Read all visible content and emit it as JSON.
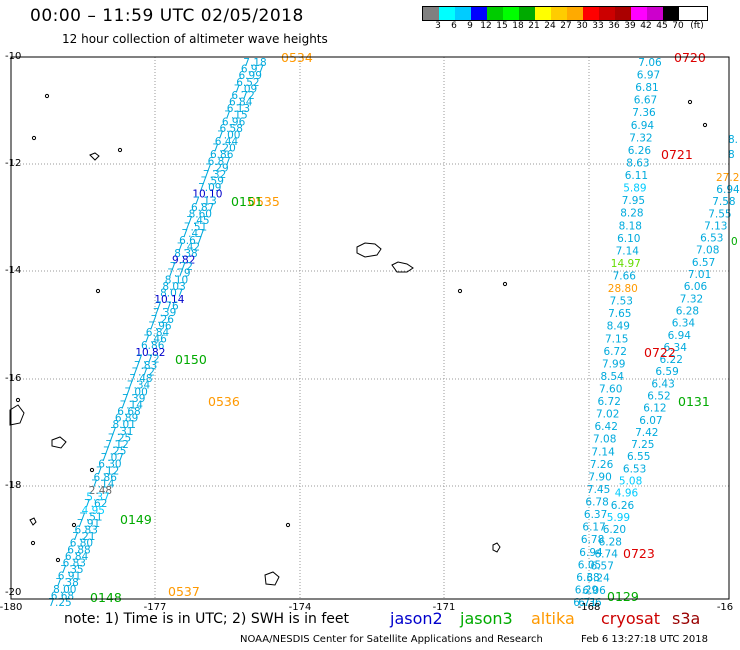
{
  "header": {
    "title": "00:00 – 11:59 UTC 02/05/2018",
    "subtitle": "12 hour collection of altimeter wave heights"
  },
  "legend": {
    "colors": [
      "#808080",
      "#00ffff",
      "#00ccff",
      "#0000ff",
      "#00cc00",
      "#00ff00",
      "#00aa00",
      "#ffff00",
      "#ffcc00",
      "#ffaa00",
      "#ff0000",
      "#cc0000",
      "#aa0000",
      "#ff00ff",
      "#cc00cc",
      "#000000"
    ],
    "values": [
      "3",
      "6",
      "9",
      "12",
      "15",
      "18",
      "21",
      "24",
      "27",
      "30",
      "33",
      "36",
      "39",
      "42",
      "45",
      "70"
    ],
    "unit": "(ft)"
  },
  "axes": {
    "y_labels": [
      "-10",
      "-12",
      "-14",
      "-16",
      "-18",
      "-20"
    ],
    "x_labels": [
      "-180",
      "-177",
      "-174",
      "-171",
      "-168",
      "-16"
    ]
  },
  "footer": {
    "note": "note: 1) Time is in UTC; 2) SWH is in feet",
    "satellites": [
      {
        "name": "jason2",
        "color": "#0000cc"
      },
      {
        "name": "jason3",
        "color": "#00aa00"
      },
      {
        "name": "altika",
        "color": "#ff9900"
      },
      {
        "name": "cryosat",
        "color": "#cc0000"
      },
      {
        "name": "s3a",
        "color": "#990000"
      }
    ],
    "credit": "NOAA/NESDIS Center for Satellite Applications and Research",
    "timestamp": "Feb  6 13:27:18 UTC 2018"
  },
  "tracks": [
    {
      "points": [
        {
          "v": "7.18",
          "c": "#00aadd"
        },
        {
          "v": "6.97",
          "c": "#00aadd"
        },
        {
          "v": "6.99",
          "c": "#00aadd"
        },
        {
          "v": "6.52",
          "c": "#00aadd"
        },
        {
          "v": "7.09",
          "c": "#00aadd"
        },
        {
          "v": "6.72",
          "c": "#00aadd"
        },
        {
          "v": "6.84",
          "c": "#00aadd"
        },
        {
          "v": "6.13",
          "c": "#00aadd"
        },
        {
          "v": "7.15",
          "c": "#00aadd"
        },
        {
          "v": "6.96",
          "c": "#00aadd"
        },
        {
          "v": "6.58",
          "c": "#00aadd"
        },
        {
          "v": "7.00",
          "c": "#00aadd"
        },
        {
          "v": "6.44",
          "c": "#00aadd"
        },
        {
          "v": "7.20",
          "c": "#00aadd"
        },
        {
          "v": "6.86",
          "c": "#00aadd"
        },
        {
          "v": "6.87",
          "c": "#00aadd"
        },
        {
          "v": "7.29",
          "c": "#00aadd"
        },
        {
          "v": "7.32",
          "c": "#00aadd"
        },
        {
          "v": "7.59",
          "c": "#00aadd"
        },
        {
          "v": "7.09",
          "c": "#00aadd"
        },
        {
          "v": "10.10",
          "c": "#0000cc"
        },
        {
          "v": "7.13",
          "c": "#00aadd"
        },
        {
          "v": "6.87",
          "c": "#00aadd"
        },
        {
          "v": "8.60",
          "c": "#00aadd"
        },
        {
          "v": "7.45",
          "c": "#00aadd"
        },
        {
          "v": "7.51",
          "c": "#00aadd"
        },
        {
          "v": "7.47",
          "c": "#00aadd"
        },
        {
          "v": "6.67",
          "c": "#00aadd"
        },
        {
          "v": "7.42",
          "c": "#00aadd"
        },
        {
          "v": "8.38",
          "c": "#00aadd"
        },
        {
          "v": "9.82",
          "c": "#0000cc"
        },
        {
          "v": "7.72",
          "c": "#00aadd"
        },
        {
          "v": "7.79",
          "c": "#00aadd"
        },
        {
          "v": "8.10",
          "c": "#00aadd"
        },
        {
          "v": "8.03",
          "c": "#00aadd"
        },
        {
          "v": "8.07",
          "c": "#00aadd"
        },
        {
          "v": "10.14",
          "c": "#0000cc"
        },
        {
          "v": "7.76",
          "c": "#00aadd"
        },
        {
          "v": "7.39",
          "c": "#00aadd"
        },
        {
          "v": "7.26",
          "c": "#00aadd"
        },
        {
          "v": "7.96",
          "c": "#00aadd"
        },
        {
          "v": "6.84",
          "c": "#00aadd"
        },
        {
          "v": "7.46",
          "c": "#00aadd"
        },
        {
          "v": "6.86",
          "c": "#00aadd"
        },
        {
          "v": "10.82",
          "c": "#0000cc"
        },
        {
          "v": "7.72",
          "c": "#00aadd"
        },
        {
          "v": "7.83",
          "c": "#00aadd"
        },
        {
          "v": "7.72",
          "c": "#00aadd"
        },
        {
          "v": "7.48",
          "c": "#00aadd"
        },
        {
          "v": "7.34",
          "c": "#00aadd"
        },
        {
          "v": "7.00",
          "c": "#00aadd"
        },
        {
          "v": "7.39",
          "c": "#00aadd"
        },
        {
          "v": "7.14",
          "c": "#00aadd"
        },
        {
          "v": "6.68",
          "c": "#00aadd"
        },
        {
          "v": "6.89",
          "c": "#00aadd"
        },
        {
          "v": "8.01",
          "c": "#00aadd"
        },
        {
          "v": "7.31",
          "c": "#00aadd"
        },
        {
          "v": "7.25",
          "c": "#00aadd"
        },
        {
          "v": "7.12",
          "c": "#00aadd"
        },
        {
          "v": "7.25",
          "c": "#00aadd"
        },
        {
          "v": "7.07",
          "c": "#00aadd"
        },
        {
          "v": "6.30",
          "c": "#00aadd"
        },
        {
          "v": "7.12",
          "c": "#00aadd"
        },
        {
          "v": "6.86",
          "c": "#00aadd"
        },
        {
          "v": "7.14",
          "c": "#00aadd"
        },
        {
          "v": "2.48",
          "c": "#666666"
        },
        {
          "v": "5.37",
          "c": "#00ccff"
        },
        {
          "v": "7.62",
          "c": "#00aadd"
        },
        {
          "v": "4.95",
          "c": "#00ccff"
        },
        {
          "v": "7.51",
          "c": "#00aadd"
        },
        {
          "v": "7.91",
          "c": "#00aadd"
        },
        {
          "v": "6.83",
          "c": "#00aadd"
        },
        {
          "v": "7.21",
          "c": "#00aadd"
        },
        {
          "v": "6.80",
          "c": "#00aadd"
        },
        {
          "v": "6.88",
          "c": "#00aadd"
        },
        {
          "v": "6.84",
          "c": "#00aadd"
        },
        {
          "v": "6.83",
          "c": "#00aadd"
        },
        {
          "v": "7.35",
          "c": "#00aadd"
        },
        {
          "v": "6.91",
          "c": "#00aadd"
        },
        {
          "v": "7.38",
          "c": "#00aadd"
        },
        {
          "v": "8.00",
          "c": "#00aadd"
        },
        {
          "v": "6.68",
          "c": "#00aadd"
        },
        {
          "v": "7.25",
          "c": "#00aadd"
        }
      ]
    },
    {
      "points": [
        {
          "v": "7.06",
          "c": "#00aadd"
        },
        {
          "v": "6.97",
          "c": "#00aadd"
        },
        {
          "v": "6.81",
          "c": "#00aadd"
        },
        {
          "v": "6.67",
          "c": "#00aadd"
        },
        {
          "v": "7.36",
          "c": "#00aadd"
        },
        {
          "v": "6.94",
          "c": "#00aadd"
        },
        {
          "v": "7.32",
          "c": "#00aadd"
        },
        {
          "v": "6.26",
          "c": "#00aadd"
        },
        {
          "v": "8.63",
          "c": "#00aadd"
        },
        {
          "v": "6.11",
          "c": "#00aadd"
        },
        {
          "v": "5.89",
          "c": "#00ccff"
        },
        {
          "v": "7.95",
          "c": "#00aadd"
        },
        {
          "v": "8.28",
          "c": "#00aadd"
        },
        {
          "v": "8.18",
          "c": "#00aadd"
        },
        {
          "v": "6.10",
          "c": "#00aadd"
        },
        {
          "v": "7.14",
          "c": "#00aadd"
        },
        {
          "v": "14.97",
          "c": "#66dd00"
        },
        {
          "v": "7.66",
          "c": "#00aadd"
        },
        {
          "v": "28.80",
          "c": "#ff9900"
        },
        {
          "v": "7.53",
          "c": "#00aadd"
        },
        {
          "v": "7.65",
          "c": "#00aadd"
        },
        {
          "v": "8.49",
          "c": "#00aadd"
        },
        {
          "v": "7.15",
          "c": "#00aadd"
        },
        {
          "v": "6.72",
          "c": "#00aadd"
        },
        {
          "v": "7.99",
          "c": "#00aadd"
        },
        {
          "v": "8.54",
          "c": "#00aadd"
        },
        {
          "v": "7.60",
          "c": "#00aadd"
        },
        {
          "v": "6.72",
          "c": "#00aadd"
        },
        {
          "v": "7.02",
          "c": "#00aadd"
        },
        {
          "v": "6.42",
          "c": "#00aadd"
        },
        {
          "v": "7.08",
          "c": "#00aadd"
        },
        {
          "v": "7.14",
          "c": "#00aadd"
        },
        {
          "v": "7.26",
          "c": "#00aadd"
        },
        {
          "v": "7.90",
          "c": "#00aadd"
        },
        {
          "v": "7.45",
          "c": "#00aadd"
        },
        {
          "v": "6.78",
          "c": "#00aadd"
        },
        {
          "v": "6.37",
          "c": "#00aadd"
        },
        {
          "v": "6.17",
          "c": "#00aadd"
        },
        {
          "v": "6.78",
          "c": "#00aadd"
        },
        {
          "v": "6.94",
          "c": "#00aadd"
        },
        {
          "v": "6.05",
          "c": "#00aadd"
        },
        {
          "v": "6.38",
          "c": "#00aadd"
        },
        {
          "v": "6.29",
          "c": "#00aadd"
        },
        {
          "v": "6.71",
          "c": "#00aadd"
        }
      ]
    },
    {
      "points": [
        {
          "v": "6.94",
          "c": "#00aadd"
        },
        {
          "v": "7.58",
          "c": "#00aadd"
        },
        {
          "v": "7.55",
          "c": "#00aadd"
        },
        {
          "v": "7.13",
          "c": "#00aadd"
        },
        {
          "v": "6.53",
          "c": "#00aadd"
        },
        {
          "v": "7.08",
          "c": "#00aadd"
        },
        {
          "v": "6.57",
          "c": "#00aadd"
        },
        {
          "v": "7.01",
          "c": "#00aadd"
        },
        {
          "v": "6.06",
          "c": "#00aadd"
        },
        {
          "v": "7.32",
          "c": "#00aadd"
        },
        {
          "v": "6.28",
          "c": "#00aadd"
        },
        {
          "v": "6.34",
          "c": "#00aadd"
        },
        {
          "v": "6.94",
          "c": "#00aadd"
        },
        {
          "v": "6.34",
          "c": "#00aadd"
        },
        {
          "v": "6.22",
          "c": "#00aadd"
        },
        {
          "v": "6.59",
          "c": "#00aadd"
        },
        {
          "v": "6.43",
          "c": "#00aadd"
        },
        {
          "v": "6.52",
          "c": "#00aadd"
        },
        {
          "v": "6.12",
          "c": "#00aadd"
        },
        {
          "v": "6.07",
          "c": "#00aadd"
        },
        {
          "v": "7.42",
          "c": "#00aadd"
        },
        {
          "v": "7.25",
          "c": "#00aadd"
        },
        {
          "v": "6.55",
          "c": "#00aadd"
        },
        {
          "v": "6.53",
          "c": "#00aadd"
        },
        {
          "v": "5.08",
          "c": "#00ccff"
        },
        {
          "v": "4.96",
          "c": "#00ccff"
        },
        {
          "v": "6.26",
          "c": "#00aadd"
        },
        {
          "v": "5.99",
          "c": "#00ccff"
        },
        {
          "v": "6.20",
          "c": "#00aadd"
        },
        {
          "v": "6.28",
          "c": "#00aadd"
        },
        {
          "v": "6.74",
          "c": "#00aadd"
        },
        {
          "v": "6.57",
          "c": "#00aadd"
        },
        {
          "v": "6.24",
          "c": "#00aadd"
        },
        {
          "v": "6.06",
          "c": "#00aadd"
        },
        {
          "v": "6.36",
          "c": "#00aadd"
        }
      ]
    }
  ],
  "time_labels": [
    {
      "text": "0534",
      "c": "#ff9900"
    },
    {
      "text": "0535",
      "c": "#ff9900"
    },
    {
      "text": "0151",
      "c": "#00aa00"
    },
    {
      "text": "0150",
      "c": "#00aa00"
    },
    {
      "text": "0536",
      "c": "#ff9900"
    },
    {
      "text": "0149",
      "c": "#00aa00"
    },
    {
      "text": "0537",
      "c": "#ff9900"
    },
    {
      "text": "0148",
      "c": "#00aa00"
    },
    {
      "text": "0720",
      "c": "#dd0000"
    },
    {
      "text": "0721",
      "c": "#dd0000"
    },
    {
      "text": "0722",
      "c": "#dd0000"
    },
    {
      "text": "0131",
      "c": "#00aa00"
    },
    {
      "text": "0723",
      "c": "#dd0000"
    },
    {
      "text": "0129",
      "c": "#00aa00"
    }
  ],
  "edge_values": [
    {
      "text": "8",
      "c": "#00aadd"
    },
    {
      "text": "8.",
      "c": "#00aadd"
    },
    {
      "text": "27.2",
      "c": "#ff9900"
    },
    {
      "text": "0",
      "c": "#00aa00"
    }
  ]
}
